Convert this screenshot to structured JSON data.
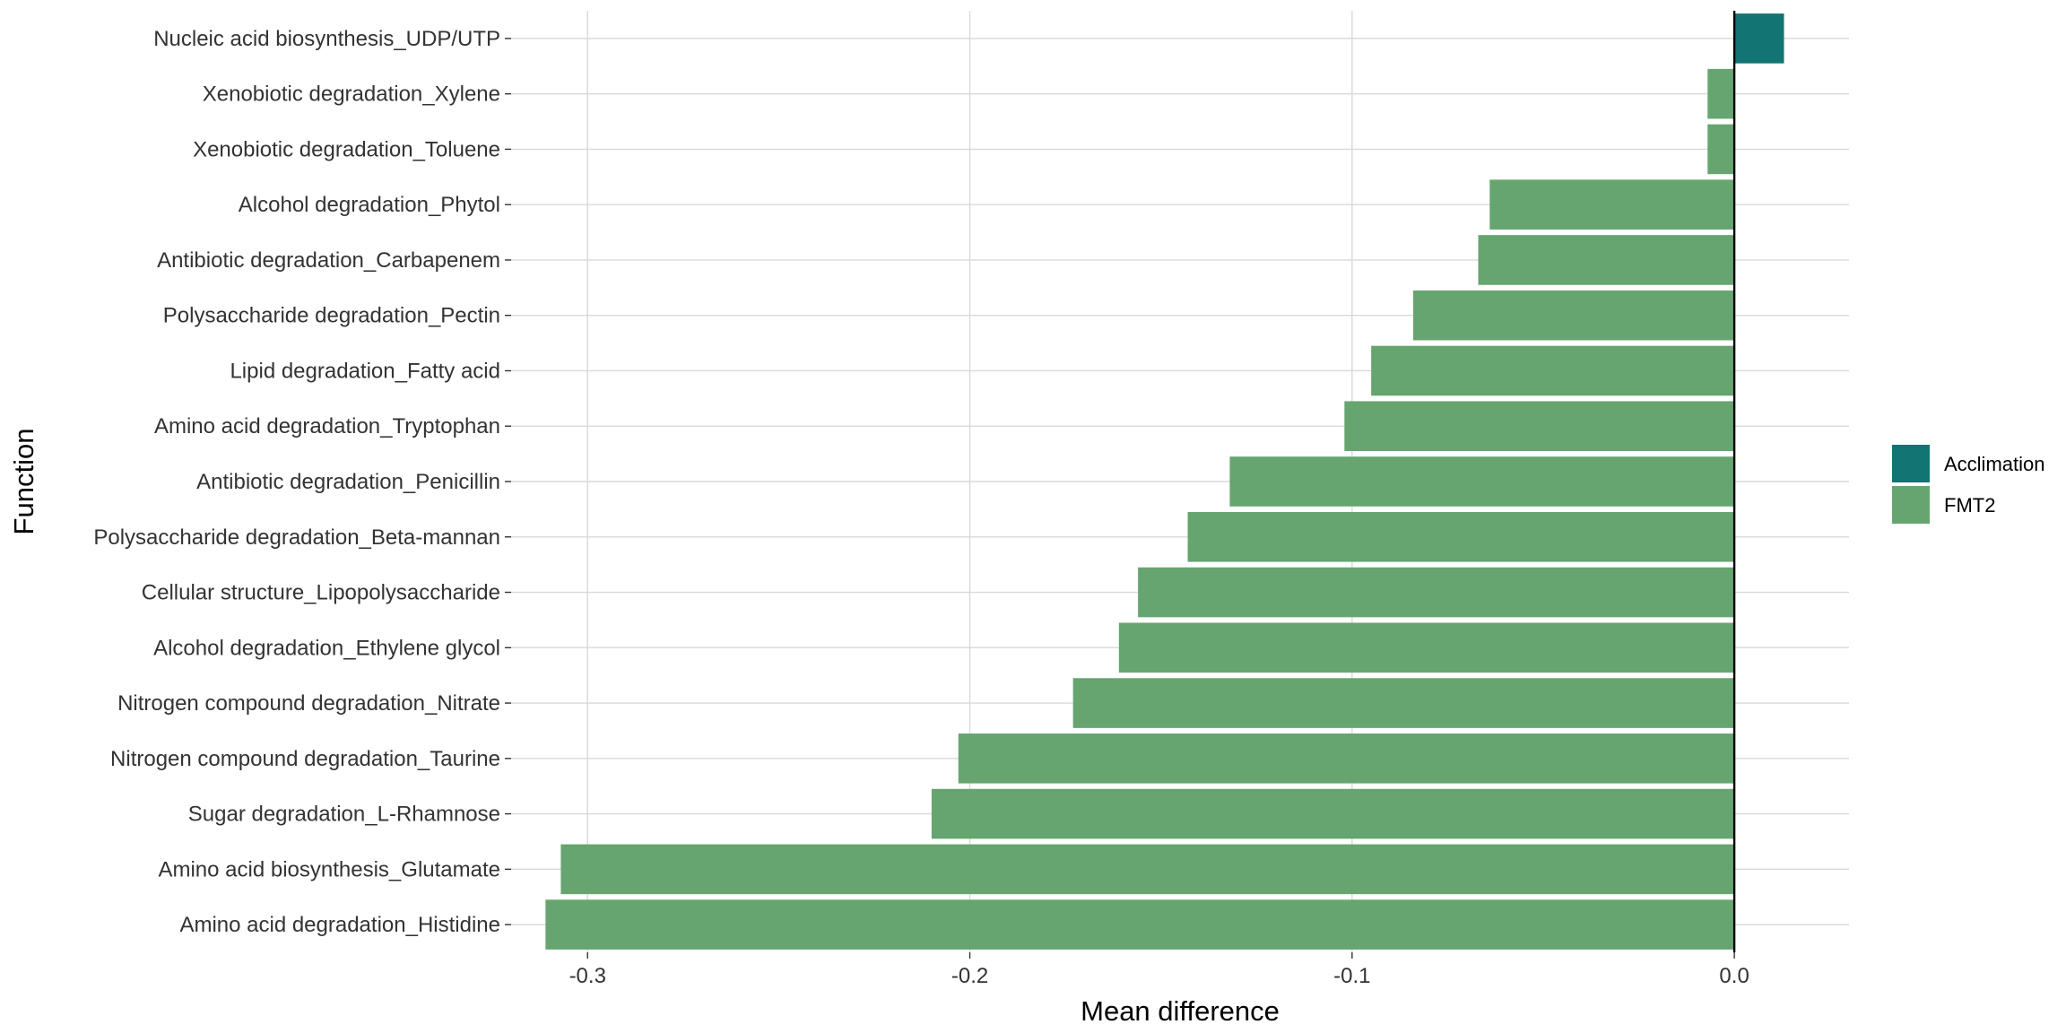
{
  "chart_data": {
    "type": "bar",
    "orientation": "horizontal",
    "xlabel": "Mean difference",
    "ylabel": "Function",
    "xlim": [
      -0.32,
      0.03
    ],
    "x_ticks": [
      -0.3,
      -0.2,
      -0.1,
      0.0
    ],
    "x_tick_labels": [
      "-0.3",
      "-0.2",
      "-0.1",
      "0.0"
    ],
    "grid": true,
    "legend_position": "right",
    "colors": {
      "Acclimation": "#137573",
      "FMT2": "#66a570"
    },
    "categories": [
      "Nucleic acid biosynthesis_UDP/UTP",
      "Xenobiotic degradation_Xylene",
      "Xenobiotic degradation_Toluene",
      "Alcohol degradation_Phytol",
      "Antibiotic degradation_Carbapenem",
      "Polysaccharide degradation_Pectin",
      "Lipid degradation_Fatty acid",
      "Amino acid degradation_Tryptophan",
      "Antibiotic degradation_Penicillin",
      "Polysaccharide degradation_Beta-mannan",
      "Cellular structure_Lipopolysaccharide",
      "Alcohol degradation_Ethylene glycol",
      "Nitrogen compound degradation_Nitrate",
      "Nitrogen compound degradation_Taurine",
      "Sugar degradation_L-Rhamnose",
      "Amino acid biosynthesis_Glutamate",
      "Amino acid degradation_Histidine"
    ],
    "values": [
      0.013,
      -0.007,
      -0.007,
      -0.064,
      -0.067,
      -0.084,
      -0.095,
      -0.102,
      -0.132,
      -0.143,
      -0.156,
      -0.161,
      -0.173,
      -0.203,
      -0.21,
      -0.307,
      -0.311
    ],
    "groups": [
      "Acclimation",
      "FMT2",
      "FMT2",
      "FMT2",
      "FMT2",
      "FMT2",
      "FMT2",
      "FMT2",
      "FMT2",
      "FMT2",
      "FMT2",
      "FMT2",
      "FMT2",
      "FMT2",
      "FMT2",
      "FMT2",
      "FMT2"
    ],
    "legend": [
      {
        "name": "Acclimation"
      },
      {
        "name": "FMT2"
      }
    ]
  }
}
